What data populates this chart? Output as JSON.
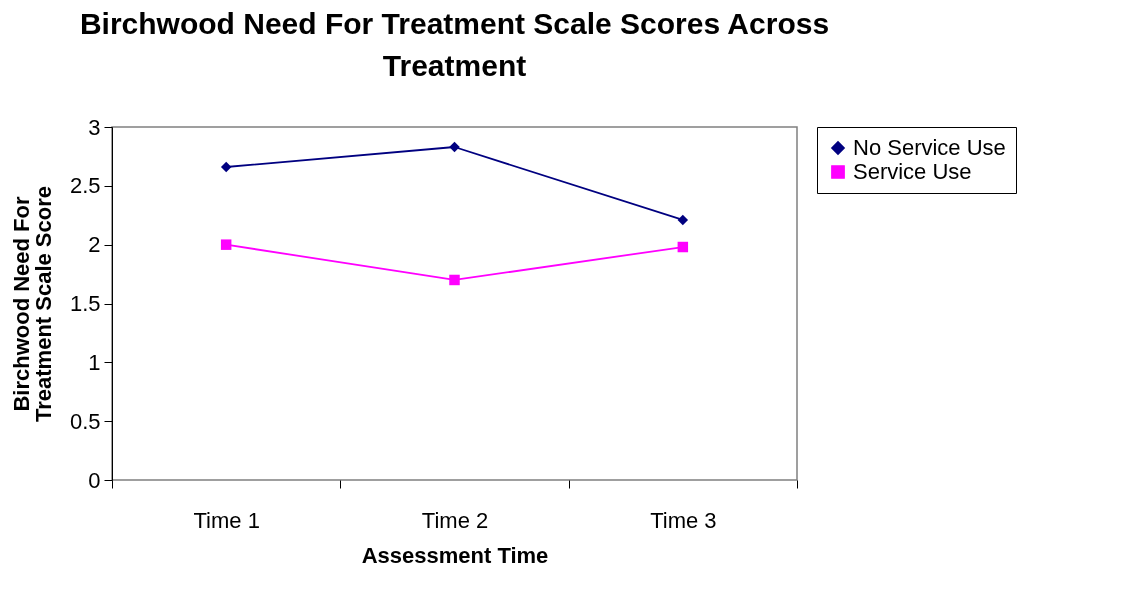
{
  "chart_data": {
    "type": "line",
    "title": "Birchwood Need For Treatment Scale Scores Across Treatment",
    "xlabel": "Assessment Time",
    "ylabel": "Birchwood Need For Treatment Scale Score",
    "categories": [
      "Time 1",
      "Time 2",
      "Time 3"
    ],
    "series": [
      {
        "name": "No Service Use",
        "color": "#000080",
        "marker": "diamond",
        "values": [
          2.66,
          2.83,
          2.21
        ]
      },
      {
        "name": "Service Use",
        "color": "#ff00ff",
        "marker": "square",
        "values": [
          2.0,
          1.7,
          1.98
        ]
      }
    ],
    "ylim": [
      0,
      3
    ],
    "yticks": [
      0,
      0.5,
      1,
      1.5,
      2,
      2.5,
      3
    ],
    "grid": false,
    "legend": "right",
    "line_style": "solid"
  }
}
